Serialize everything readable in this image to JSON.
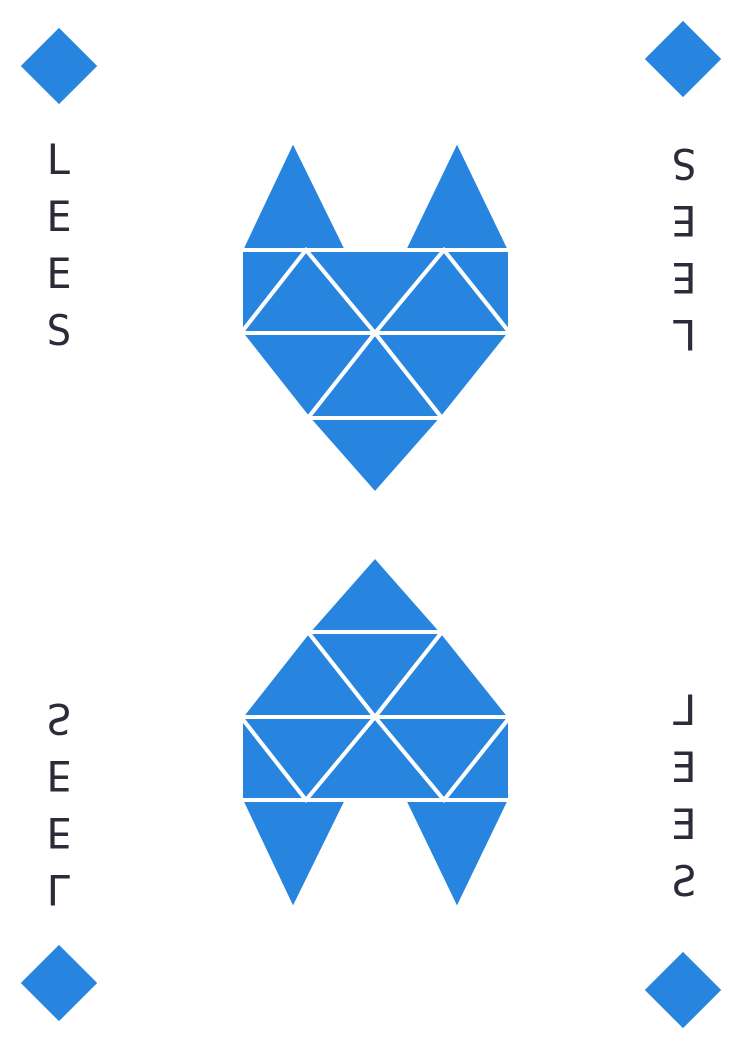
{
  "card": {
    "word_letters": [
      "L",
      "E",
      "E",
      "S"
    ],
    "suit": "diamond-icon",
    "colors": {
      "accent": "#2784DF",
      "text": "#2b2b3a",
      "background": "#ffffff"
    }
  }
}
